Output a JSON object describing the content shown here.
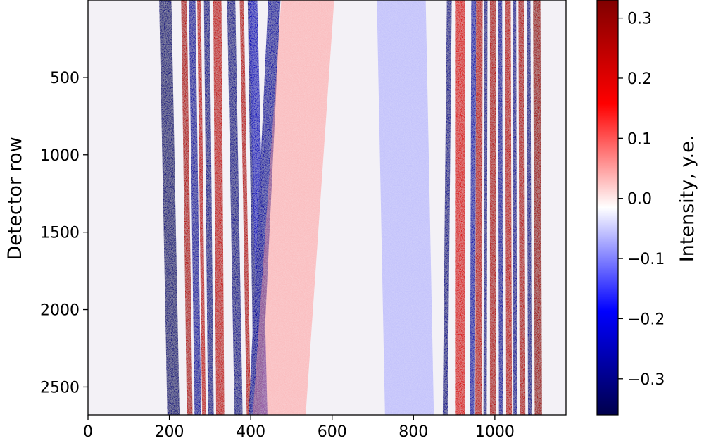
{
  "chart_data": {
    "type": "heatmap",
    "title": "",
    "xlabel": "",
    "ylabel": "Detector row",
    "xlim": [
      0,
      1175
    ],
    "ylim": [
      2680,
      0
    ],
    "y_inverted": true,
    "xticks": [
      0,
      200,
      400,
      600,
      800,
      1000
    ],
    "yticks": [
      500,
      1000,
      1500,
      2000,
      2500
    ],
    "grid": false,
    "colormap": "seismic",
    "colorbar": {
      "label": "Intensity, y.e.",
      "vmin": -0.36,
      "vmax": 0.33,
      "ticks": [
        0.3,
        0.2,
        0.1,
        0.0,
        -0.1,
        -0.2,
        -0.3
      ],
      "tick_labels": [
        "0.3",
        "0.2",
        "0.1",
        "0.0",
        "−0.1",
        "−0.2",
        "−0.3"
      ]
    },
    "bands": [
      {
        "x_top": 190,
        "x_bottom": 210,
        "width": 30,
        "value": -0.32
      },
      {
        "x_top": 236,
        "x_bottom": 250,
        "width": 14,
        "value": 0.27
      },
      {
        "x_top": 256,
        "x_bottom": 270,
        "width": 16,
        "value": -0.28
      },
      {
        "x_top": 273,
        "x_bottom": 285,
        "width": 9,
        "value": 0.25
      },
      {
        "x_top": 292,
        "x_bottom": 302,
        "width": 14,
        "value": -0.3
      },
      {
        "x_top": 318,
        "x_bottom": 325,
        "width": 20,
        "value": 0.25
      },
      {
        "x_top": 352,
        "x_bottom": 370,
        "width": 20,
        "value": -0.3
      },
      {
        "x_top": 378,
        "x_bottom": 395,
        "width": 10,
        "value": 0.26
      },
      {
        "x_top": 397,
        "x_bottom": 412,
        "width": 9,
        "value": -0.3
      },
      {
        "x_top": 405,
        "x_bottom": 430,
        "width": 22,
        "value": -0.25
      },
      {
        "x_top": 458,
        "x_bottom": 410,
        "width": 30,
        "value": -0.28
      },
      {
        "x_top": 540,
        "x_bottom": 470,
        "width": 130,
        "value": 0.07
      },
      {
        "x_top": 770,
        "x_bottom": 790,
        "width": 120,
        "value": -0.07
      },
      {
        "x_top": 888,
        "x_bottom": 878,
        "width": 12,
        "value": -0.3
      },
      {
        "x_top": 915,
        "x_bottom": 915,
        "width": 22,
        "value": 0.22
      },
      {
        "x_top": 948,
        "x_bottom": 945,
        "width": 12,
        "value": -0.27
      },
      {
        "x_top": 962,
        "x_bottom": 960,
        "width": 16,
        "value": 0.26
      },
      {
        "x_top": 978,
        "x_bottom": 976,
        "width": 8,
        "value": -0.3
      },
      {
        "x_top": 995,
        "x_bottom": 995,
        "width": 14,
        "value": 0.27
      },
      {
        "x_top": 1013,
        "x_bottom": 1015,
        "width": 10,
        "value": -0.28
      },
      {
        "x_top": 1032,
        "x_bottom": 1035,
        "width": 14,
        "value": 0.26
      },
      {
        "x_top": 1048,
        "x_bottom": 1050,
        "width": 9,
        "value": -0.29
      },
      {
        "x_top": 1065,
        "x_bottom": 1068,
        "width": 14,
        "value": 0.27
      },
      {
        "x_top": 1083,
        "x_bottom": 1086,
        "width": 9,
        "value": -0.3
      },
      {
        "x_top": 1103,
        "x_bottom": 1107,
        "width": 18,
        "value": 0.3
      }
    ]
  }
}
